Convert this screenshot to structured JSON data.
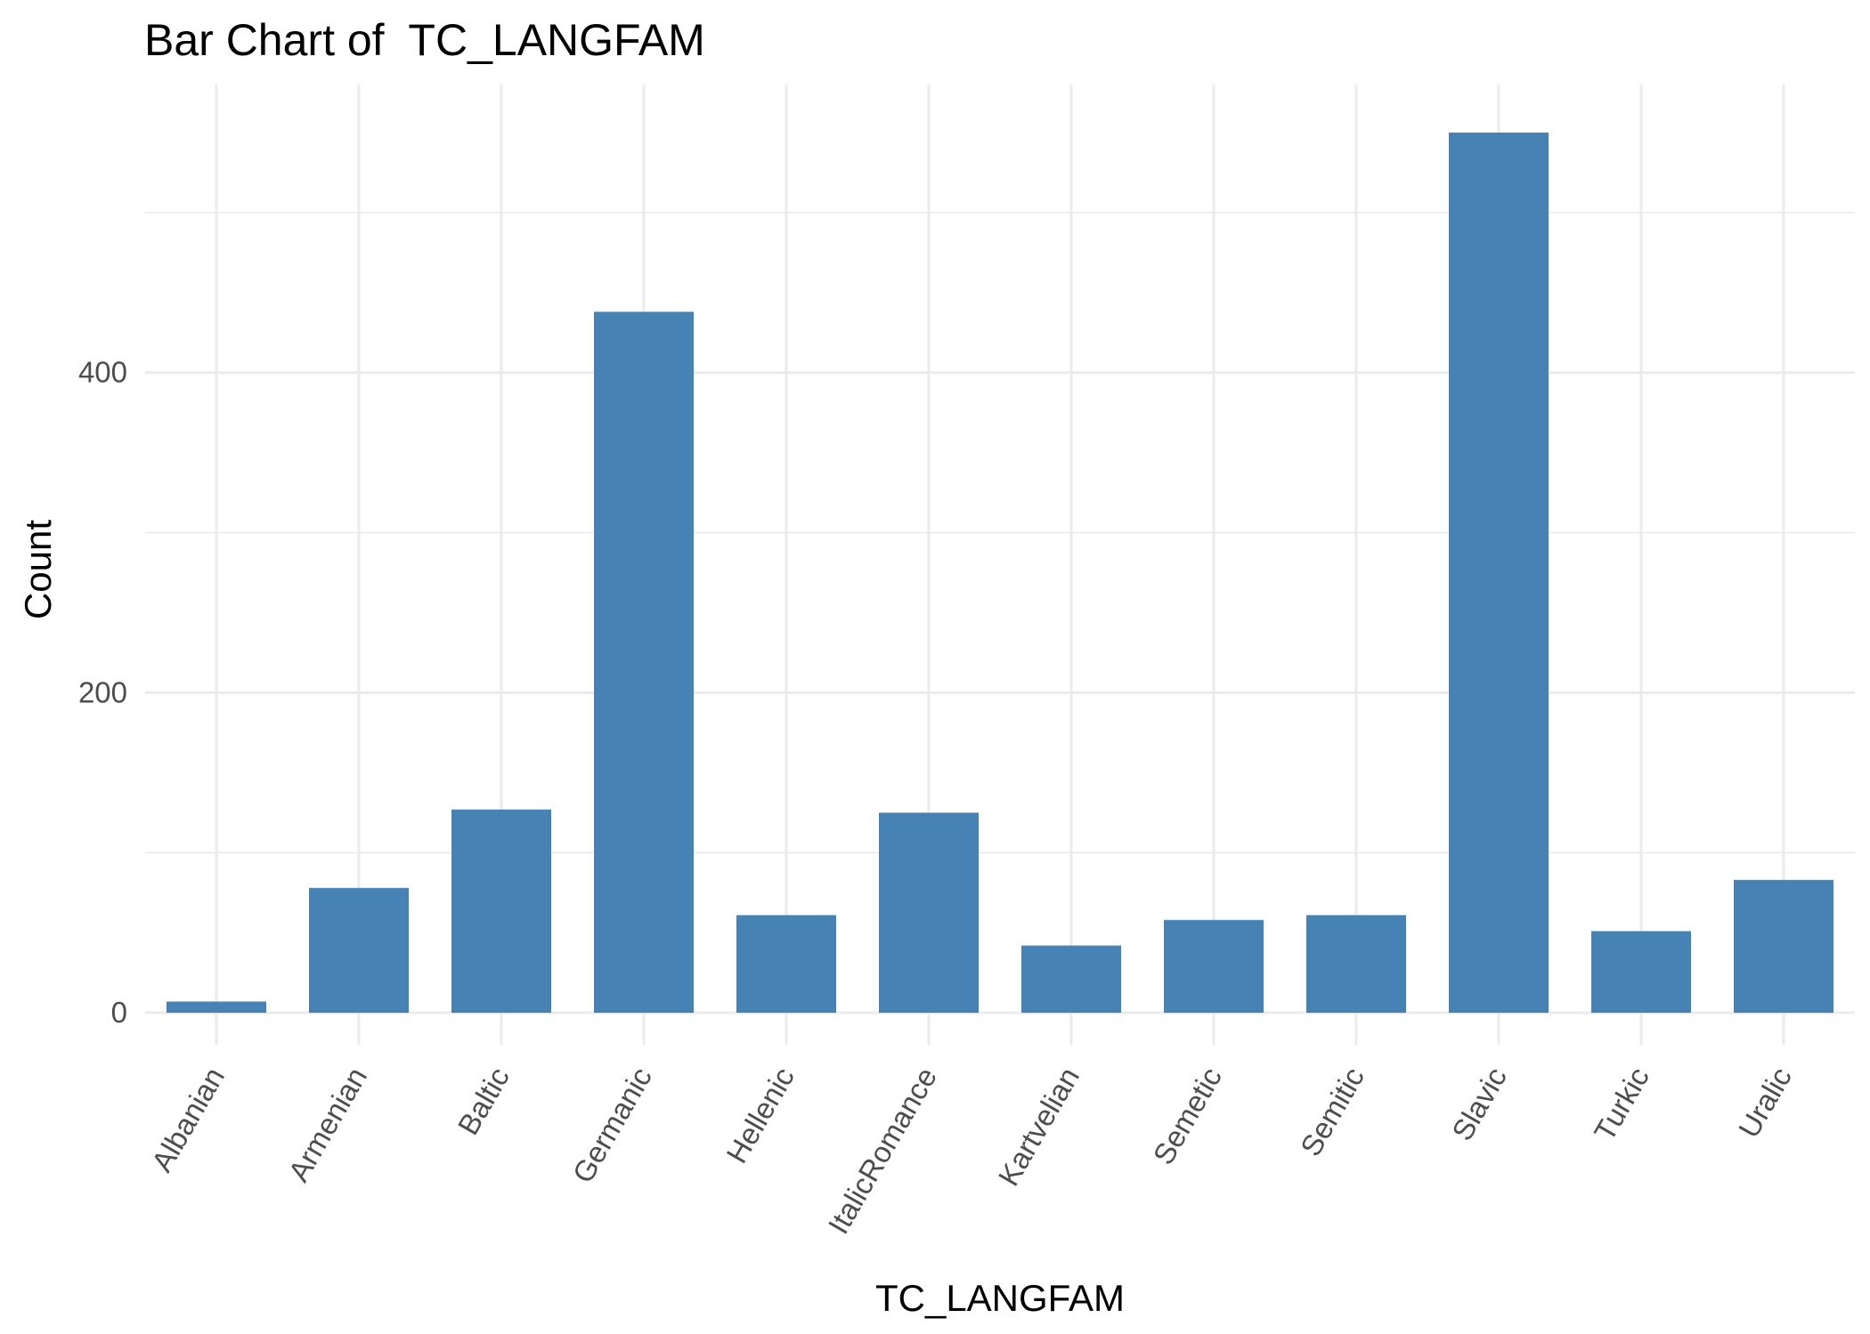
{
  "chart_data": {
    "type": "bar",
    "title": "Bar Chart of  TC_LANGFAM",
    "xlabel": "TC_LANGFAM",
    "ylabel": "Count",
    "categories": [
      "Albanian",
      "Armenian",
      "Baltic",
      "Germanic",
      "Hellenic",
      "ItalicRomance",
      "Kartvelian",
      "Semetic",
      "Semitic",
      "Slavic",
      "Turkic",
      "Uralic"
    ],
    "values": [
      7,
      78,
      127,
      438,
      61,
      125,
      42,
      58,
      61,
      550,
      51,
      83
    ],
    "y_ticks": [
      0,
      200,
      400
    ],
    "ylim": [
      -20,
      580
    ],
    "grid": true,
    "legend": "none",
    "bar_color": "#4682b4"
  }
}
